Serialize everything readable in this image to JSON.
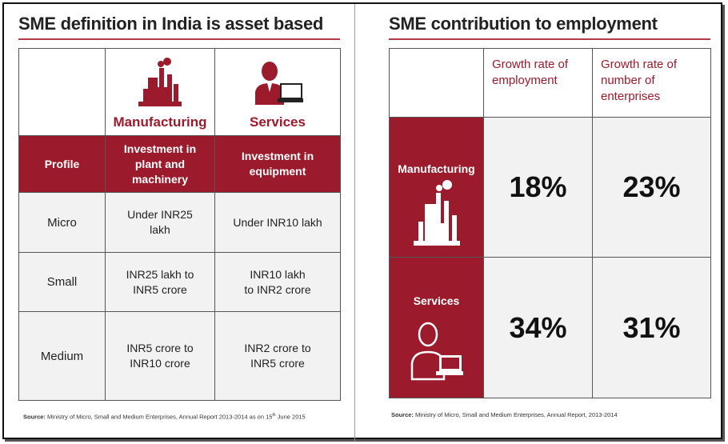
{
  "left": {
    "title": "SME definition in India is asset based",
    "columns": [
      "Manufacturing",
      "Services"
    ],
    "subheader": {
      "profile": "Profile",
      "manufacturing": "Investment in plant and machinery",
      "services": "Investment in equipment"
    },
    "rows": [
      {
        "profile": "Micro",
        "manufacturing": "Under INR25 lakh",
        "services": "Under INR10 lakh"
      },
      {
        "profile": "Small",
        "manufacturing": "INR25 lakh to INR5 crore",
        "services": "INR10 lakh to INR2 crore"
      },
      {
        "profile": "Medium",
        "manufacturing": "INR5 crore to INR10 crore",
        "services": "INR2 crore to INR5 crore"
      }
    ],
    "source_label": "Source:",
    "source_text": "Ministry of Micro, Small and Medium Enterprises, Annual Report 2013-2014 as on 15",
    "source_sup": "th",
    "source_tail": " June 2015"
  },
  "right": {
    "title": "SME contribution to employment",
    "col1": "Growth rate of employment",
    "col2": "Growth rate of number of enterprises",
    "rows": [
      {
        "label": "Manufacturing",
        "employment": "18%",
        "enterprises": "23%"
      },
      {
        "label": "Services",
        "employment": "34%",
        "enterprises": "31%"
      }
    ],
    "source_label": "Source:",
    "source_text": "Ministry of Micro, Small and Medium Enterprises, Annual Report, 2013-2014"
  },
  "icons": {
    "factory": "factory-icon",
    "services": "office-worker-icon"
  },
  "colors": {
    "accent": "#9b1b2c",
    "cell_bg": "#f2f2f2"
  }
}
